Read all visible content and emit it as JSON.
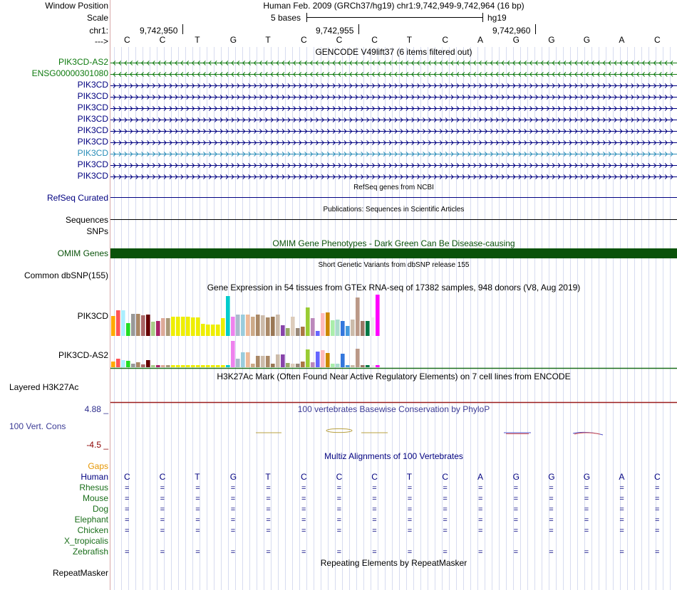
{
  "colors": {
    "track_label": "#000000",
    "gencode": "#000080",
    "gencode_highlight": "#2A8DB8",
    "antisense": "#0E7A0E",
    "omim": "#0A520A",
    "conservation": "#3C3C96",
    "cons_top": "#2C2C8C",
    "cons_bottom": "#8C0000",
    "gaps": "#E69500",
    "species": "#1A6E1A",
    "h3k27ac_line": "#9B1C1C",
    "gtex_line": "#1A6E1A"
  },
  "header": {
    "window_position_label": "Window Position",
    "window_position_value": "Human Feb. 2009 (GRCh37/hg19)   chr1:9,742,949-9,742,964 (16 bp)",
    "scale_label": "Scale",
    "scale_bases": "5 bases",
    "scale_assembly": "hg19",
    "chrom_label": "chr1:",
    "positions": [
      "9,742,950",
      "9,742,955",
      "9,742,960"
    ],
    "strand_label": "--->"
  },
  "bases": [
    "C",
    "C",
    "T",
    "G",
    "T",
    "C",
    "C",
    "C",
    "T",
    "C",
    "A",
    "G",
    "G",
    "G",
    "A",
    "C"
  ],
  "gencode": {
    "title": "GENCODE V49lift37 (6 items filtered out)",
    "items": [
      {
        "label": "PIK3CD-AS2",
        "type": "antisense"
      },
      {
        "label": "ENSG00000301080",
        "type": "antisense"
      },
      {
        "label": "PIK3CD",
        "type": "coding"
      },
      {
        "label": "PIK3CD",
        "type": "coding"
      },
      {
        "label": "PIK3CD",
        "type": "coding"
      },
      {
        "label": "PIK3CD",
        "type": "coding"
      },
      {
        "label": "PIK3CD",
        "type": "coding"
      },
      {
        "label": "PIK3CD",
        "type": "coding"
      },
      {
        "label": "PIK3CD",
        "type": "highlight"
      },
      {
        "label": "PIK3CD",
        "type": "coding"
      },
      {
        "label": "PIK3CD",
        "type": "coding"
      }
    ]
  },
  "refseq": {
    "title": "RefSeq genes from NCBI",
    "label": "RefSeq Curated"
  },
  "publications": {
    "title": "Publications: Sequences in Scientific Articles",
    "label": "Sequences"
  },
  "snps_label": "SNPs",
  "omim": {
    "title": "OMIM Gene Phenotypes - Dark Green Can Be Disease-causing",
    "label": "OMIM Genes"
  },
  "dbsnp": {
    "title": "Short Genetic Variants from dbSNP release 155",
    "label": "Common dbSNP(155)"
  },
  "gtex": {
    "title": "Gene Expression in 54 tissues from GTEx RNA-seq of 17382 samples, 948 donors (V8, Aug 2019)",
    "genes": [
      {
        "label": "PIK3CD",
        "values": [
          28,
          36,
          36,
          18,
          31,
          31,
          29,
          30,
          20,
          21,
          25,
          25,
          27,
          27,
          27,
          27,
          26,
          26,
          17,
          16,
          16,
          16,
          25,
          56,
          27,
          30,
          30,
          30,
          27,
          30,
          29,
          26,
          27,
          30,
          15,
          11,
          27,
          11,
          13,
          40,
          25,
          7,
          32,
          33,
          22,
          23,
          21,
          14,
          23,
          54,
          21,
          21,
          26,
          58
        ]
      },
      {
        "label": "PIK3CD-AS2",
        "values": [
          8,
          12,
          10,
          9,
          5,
          7,
          4,
          10,
          3,
          3,
          3,
          3,
          3,
          3,
          3,
          3,
          3,
          3,
          3,
          3,
          3,
          3,
          3,
          3,
          37,
          12,
          21,
          21,
          5,
          16,
          16,
          16,
          5,
          18,
          18,
          6,
          5,
          5,
          8,
          25,
          7,
          22,
          24,
          20,
          5,
          5,
          19,
          3,
          3,
          26,
          3,
          3,
          3,
          3
        ]
      }
    ],
    "tissue_colors": [
      "#FFAA00",
      "#FF5555",
      "#AAEEFF",
      "#22DD22",
      "#999999",
      "#AA8866",
      "#AA6666",
      "#660000",
      "#AACC88",
      "#AA2266",
      "#DDAA99",
      "#AA9977",
      "#EEEE00",
      "#EEEE00",
      "#EEEE00",
      "#EEEE00",
      "#EEEE00",
      "#EEEE00",
      "#EEEE00",
      "#EEEE00",
      "#EEEE00",
      "#EEEE00",
      "#EEEE00",
      "#00CCCC",
      "#EE82EE",
      "#AABBCC",
      "#99CCDD",
      "#EEBB99",
      "#CCAA88",
      "#AA8866",
      "#CCBBAA",
      "#AA8866",
      "#997755",
      "#CCBBAA",
      "#8844AA",
      "#99AA66",
      "#DDCCBB",
      "#998877",
      "#AA7744",
      "#99CC33",
      "#BB88BB",
      "#6666FF",
      "#FFBBBB",
      "#CC8800",
      "#AAEEAA",
      "#AADDCC",
      "#3377DD",
      "#4499DD",
      "#CCBBAA",
      "#BB9988",
      "#997766",
      "#007744",
      "#EEEEEE",
      "#FF00FF"
    ]
  },
  "h3k27ac": {
    "title": "H3K27Ac Mark (Often Found Near Active Regulatory Elements) on 7 cell lines from ENCODE",
    "label": "Layered H3K27Ac"
  },
  "conservation": {
    "title": "100 vertebrates Basewise Conservation by PhyloP",
    "label": "100 Vert. Cons",
    "max_label": "4.88 _",
    "min_label": "-4.5 _",
    "range": [
      -4.5,
      4.88
    ]
  },
  "multiz": {
    "title": "Multiz Alignments of 100 Vertebrates",
    "gaps_label": "Gaps",
    "human_label": "Human",
    "species": [
      {
        "label": "Rhesus",
        "aligned": true
      },
      {
        "label": "Mouse",
        "aligned": true
      },
      {
        "label": "Dog",
        "aligned": true
      },
      {
        "label": "Elephant",
        "aligned": true
      },
      {
        "label": "Chicken",
        "aligned": true
      },
      {
        "label": "X_tropicalis",
        "aligned": false
      },
      {
        "label": "Zebrafish",
        "aligned": true
      }
    ],
    "match_symbol": "="
  },
  "repeatmasker": {
    "title": "Repeating Elements by RepeatMasker",
    "label": "RepeatMasker"
  }
}
